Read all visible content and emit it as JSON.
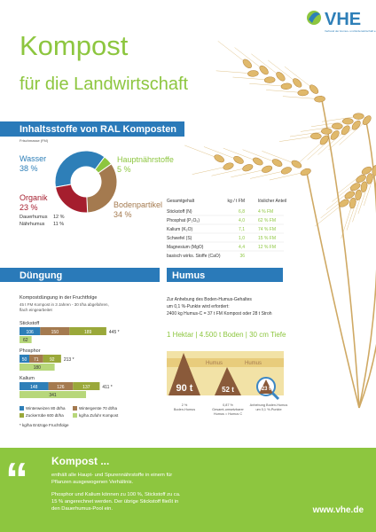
{
  "header": {
    "logo": "VHE",
    "logo_subtitle": "Verband der Humus- und Erdenwirtschaft e.V.",
    "title": "Kompost",
    "subtitle": "für die Landwirtschaft"
  },
  "ingredients": {
    "heading": "Inhaltsstoffe von RAL Komposten",
    "basis": "Frischmasse (FM)",
    "composition": [
      {
        "label": "Wasser",
        "value": 38,
        "value_label": "38 %",
        "color": "#2e7fb8"
      },
      {
        "label": "Hauptnährstoffe",
        "value": 5,
        "value_label": "5 %",
        "color": "#8dc63f"
      },
      {
        "label": "Bodenpartikel",
        "value": 34,
        "value_label": "34 %",
        "color": "#a47a4f"
      },
      {
        "label": "Organik",
        "value": 23,
        "value_label": "23 %",
        "color": "#a51e2e"
      }
    ],
    "humus_split": [
      [
        "Dauerhumus",
        "12 %"
      ],
      [
        "Nährhumus",
        "11 %"
      ]
    ],
    "table": {
      "columns": [
        "Gesamtgehalt",
        "kg / t FM",
        "löslicher Anteil"
      ],
      "rows": [
        [
          "Stickstoff (N)",
          "6,8",
          "4 % FM"
        ],
        [
          "Phosphat (P₂O₅)",
          "4,0",
          "62 % FM"
        ],
        [
          "Kalium (K₂O)",
          "7,1",
          "74 % FM"
        ],
        [
          "Schwefel (S)",
          "1,0",
          "15 % FM"
        ],
        [
          "Magnesium (MgO)",
          "4,4",
          "12 % FM"
        ],
        [
          "basisch wirks. Stoffe (CaO)",
          "36"
        ]
      ]
    }
  },
  "fertilization": {
    "heading": "Düngung",
    "title": "Kompostdüngung in der Fruchtfolge",
    "note": [
      "45 t FM Kompost in 3 Jahren - 30 t/ha abgefahren,",
      "flach eingearbeitet"
    ],
    "nutrients": [
      {
        "name": "Stickstoff",
        "crops": [
          106,
          150,
          189
        ],
        "total": 445,
        "total_label": "445 *",
        "compost": 62
      },
      {
        "name": "Phosphor",
        "crops": [
          50,
          71,
          92
        ],
        "total": 213,
        "total_label": "213 *",
        "compost": 180
      },
      {
        "name": "Kalium",
        "crops": [
          148,
          126,
          137
        ],
        "total": 411,
        "total_label": "411 *",
        "compost": 341
      }
    ],
    "legend": [
      {
        "label": "Winterweizen 80 dt/ha",
        "color": "#2e7fb8"
      },
      {
        "label": "Wintergerste 70 dt/ha",
        "color": "#a47a4f"
      },
      {
        "label": "Zuckerrübe 600 dt/ha",
        "color": "#9aa83a"
      },
      {
        "label": "kg/ha Zufuhr Kompost",
        "color": "#b7d77a"
      }
    ],
    "footnote": "* kg/ha Entzüge Fruchtfolge"
  },
  "humus": {
    "heading": "Humus",
    "text": [
      "Zur Anhebung des Boden-Humus-Gehaltes",
      "um 0,1 %-Punkte wird erfordert:",
      "2400 kg Humus-C = 37 t FM Kompost oder 28 t Stroh"
    ],
    "scale": "1 Hektar | 4.500 t Boden | 30 cm Tiefe",
    "layer_label": "Humus",
    "amounts": [
      "90 t",
      "52 t",
      "23 t"
    ],
    "captions": [
      [
        "2 %",
        "Boden-Humus"
      ],
      [
        "0,87 %",
        "Gesamt-umsetzbarer",
        "Humus = Humus C"
      ],
      [
        "Anhebung Boden-Humus",
        "um 0,1 %-Punkte"
      ]
    ]
  },
  "footer": {
    "title": "Kompost ...",
    "lines": [
      "enthält alle Haupt- und Spurennährstoffe in einem für",
      "Pflanzen ausgewogenen Verhältnis.",
      "Phosphor und Kalium können zu 100 %, Stickstoff zu ca.",
      "15 % angerechnet werden. Der übrige Stickstoff fließt in",
      "den Dauerhumus-Pool ein."
    ],
    "url": "www.vhe.de"
  }
}
